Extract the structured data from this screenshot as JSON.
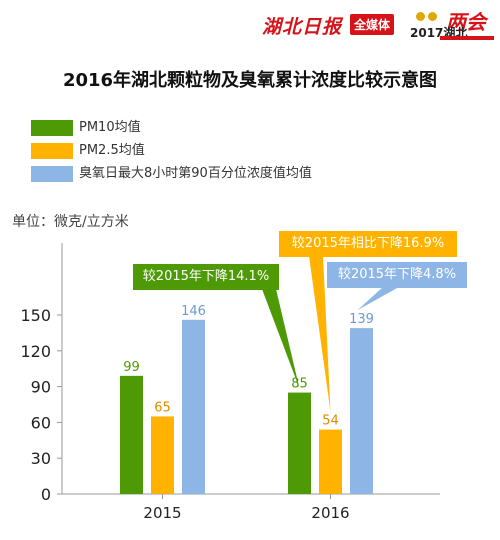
{
  "header": {
    "paper_name": "湖北日报",
    "media_badge": "全媒体",
    "event_year": "2017湖北",
    "event_name": "两会"
  },
  "chart_data": {
    "type": "bar",
    "title": "2016年湖北颗粒物及臭氧累计浓度比较示意图",
    "unit_label": "单位：微克/立方米",
    "categories": [
      "2015",
      "2016"
    ],
    "series": [
      {
        "name": "PM10均值",
        "color": "#4e9a06",
        "values": [
          99,
          85
        ]
      },
      {
        "name": "PM2.5均值",
        "color": "#ffb300",
        "values": [
          65,
          54
        ]
      },
      {
        "name": "臭氧日最大8小时第90百分位浓度值均值",
        "color": "#8db6e6",
        "values": [
          146,
          139
        ]
      }
    ],
    "ylim": [
      0,
      165
    ],
    "yticks": [
      0,
      30,
      60,
      90,
      120,
      150
    ],
    "label_colors": [
      "#4e9a06",
      "#e08a00",
      "#6a9bd4"
    ],
    "annotations": [
      {
        "text": "较2015年下降14.1%",
        "color": "#4e9a06",
        "series_index": 0
      },
      {
        "text": "较2015年相比下降16.9%",
        "color": "#ffb300",
        "series_index": 1
      },
      {
        "text": "较2015年下降4.8%",
        "color": "#8db6e6",
        "series_index": 2
      }
    ]
  }
}
